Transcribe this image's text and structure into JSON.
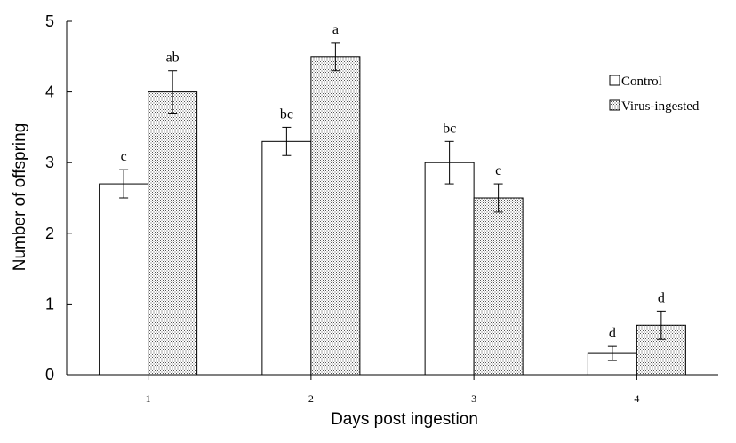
{
  "chart_data": {
    "type": "bar",
    "title": "",
    "xlabel": "Days post ingestion",
    "ylabel": "Number of offspring",
    "categories": [
      "1",
      "2",
      "3",
      "4"
    ],
    "ylim": [
      0,
      5
    ],
    "yticks": [
      "0",
      "1",
      "2",
      "3",
      "4",
      "5"
    ],
    "grid": false,
    "legend_position": "right",
    "series": [
      {
        "name": "Control",
        "fill": "white",
        "values": [
          2.7,
          3.3,
          3.0,
          0.3
        ],
        "errors": [
          0.2,
          0.2,
          0.3,
          0.1
        ],
        "letters": [
          "c",
          "bc",
          "bc",
          "d"
        ]
      },
      {
        "name": "Virus-ingested",
        "fill": "dotted",
        "values": [
          4.0,
          4.5,
          2.5,
          0.7
        ],
        "errors": [
          0.3,
          0.2,
          0.2,
          0.2
        ],
        "letters": [
          "ab",
          "a",
          "c",
          "d"
        ]
      }
    ]
  }
}
